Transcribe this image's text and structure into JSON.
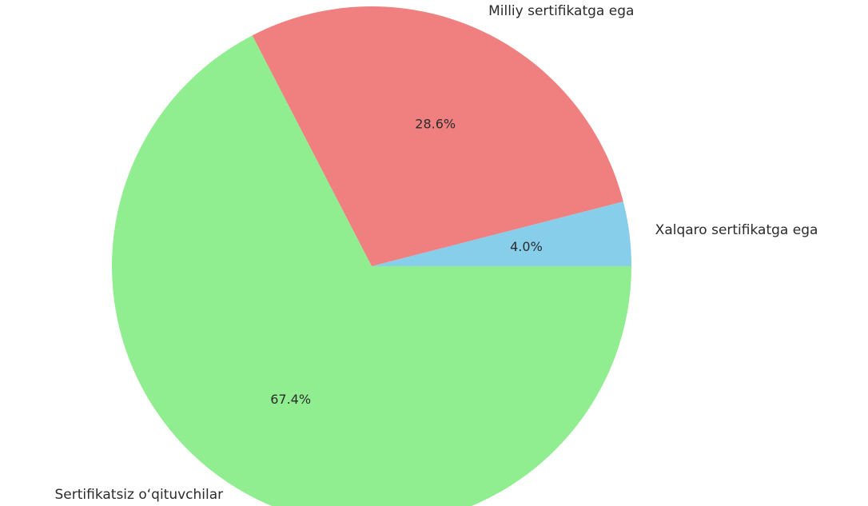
{
  "chart_data": {
    "type": "pie",
    "title": "",
    "start_angle_deg": 0,
    "direction": "counterclockwise",
    "slices": [
      {
        "label": "Xalqaro sertifikatga ega",
        "value": 4.0,
        "pct_label": "4.0%",
        "color": "#87ceeb"
      },
      {
        "label": "Milliy sertifikatga ega",
        "value": 28.6,
        "pct_label": "28.6%",
        "color": "#f08080"
      },
      {
        "label": "Sertifikatsiz o‘qituvchilar",
        "value": 67.4,
        "pct_label": "67.4%",
        "color": "#90ee90"
      }
    ]
  }
}
